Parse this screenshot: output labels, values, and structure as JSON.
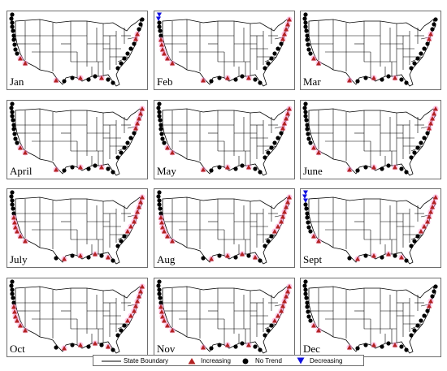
{
  "months": [
    "Jan",
    "Feb",
    "Mar",
    "April",
    "May",
    "June",
    "July",
    "Aug",
    "Sept",
    "Oct",
    "Nov",
    "Dec"
  ],
  "legend": {
    "state_boundary": "State Boundary",
    "increasing": "Increasing",
    "no_trend": "No Trend",
    "decreasing": "Decreasing"
  },
  "colors": {
    "increasing": "#b22222",
    "increasing_halo": "#ff8fd0",
    "no_trend": "#000000",
    "decreasing": "#1010e0",
    "boundary": "#000000"
  },
  "symbols": {
    "increasing": "red-triangle-up",
    "no_trend": "black-circle",
    "decreasing": "blue-triangle-down"
  }
}
